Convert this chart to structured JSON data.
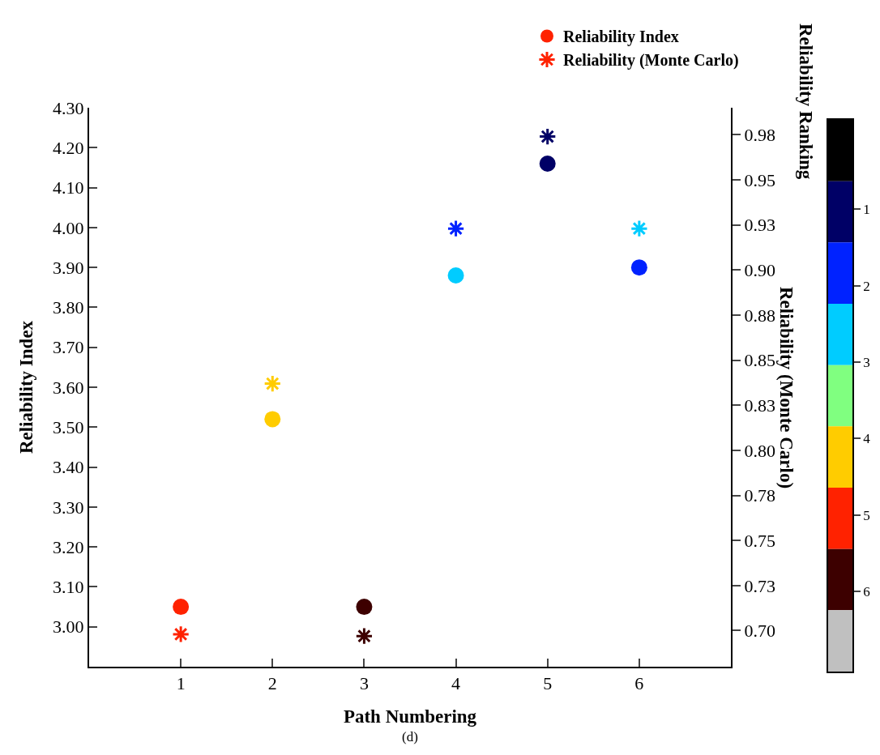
{
  "chart_data": {
    "type": "scatter",
    "xlabel": "Path Numbering",
    "ylabel": "Reliability Index",
    "y2label": "Reliability (Monte Carlo)",
    "clabel": "Reliability Ranking",
    "annotations": [
      "(d)"
    ],
    "x": [
      1,
      2,
      3,
      4,
      5,
      6
    ],
    "xlim": [
      0,
      7
    ],
    "xticks": [
      1,
      2,
      3,
      4,
      5,
      6
    ],
    "ylim": [
      2.9,
      4.3
    ],
    "yticks": [
      {
        "value": 3.0,
        "label": "3.00"
      },
      {
        "value": 3.1,
        "label": "3.10"
      },
      {
        "value": 3.2,
        "label": "3.20"
      },
      {
        "value": 3.3,
        "label": "3.30"
      },
      {
        "value": 3.4,
        "label": "3.40"
      },
      {
        "value": 3.5,
        "label": "3.50"
      },
      {
        "value": 3.6,
        "label": "3.60"
      },
      {
        "value": 3.7,
        "label": "3.70"
      },
      {
        "value": 3.8,
        "label": "3.80"
      },
      {
        "value": 3.9,
        "label": "3.90"
      },
      {
        "value": 4.0,
        "label": "4.00"
      },
      {
        "value": 4.1,
        "label": "4.10"
      },
      {
        "value": 4.2,
        "label": "4.20"
      },
      {
        "value": 4.3,
        "label": "4.30"
      }
    ],
    "y2lim": [
      0.68,
      0.99
    ],
    "y2ticks": [
      {
        "value": 0.7,
        "label": "0.70"
      },
      {
        "value": 0.725,
        "label": "0.73"
      },
      {
        "value": 0.75,
        "label": "0.75"
      },
      {
        "value": 0.775,
        "label": "0.78"
      },
      {
        "value": 0.8,
        "label": "0.80"
      },
      {
        "value": 0.825,
        "label": "0.83"
      },
      {
        "value": 0.85,
        "label": "0.85"
      },
      {
        "value": 0.875,
        "label": "0.88"
      },
      {
        "value": 0.9,
        "label": "0.90"
      },
      {
        "value": 0.925,
        "label": "0.93"
      },
      {
        "value": 0.95,
        "label": "0.95"
      },
      {
        "value": 0.975,
        "label": "0.98"
      }
    ],
    "clim": [
      7.05,
      -0.17
    ],
    "cticks": [
      1,
      2,
      3,
      4,
      5,
      6
    ],
    "colors": [
      "#000000",
      "#000066",
      "#0022ff",
      "#00ccff",
      "#80ff80",
      "#ffcc00",
      "#ff2200",
      "#3d0000",
      "#c0c0c0"
    ],
    "legend": "top right",
    "series": [
      {
        "name": "Reliability Index",
        "colors": [
          "#ff2200",
          "#ffcc00",
          "#3d0000",
          "#00ccff",
          "#000066",
          "#0022ff"
        ],
        "marker": "circle",
        "values": [
          3.05,
          3.52,
          3.05,
          3.88,
          4.16,
          3.9
        ]
      },
      {
        "name": "Reliability (Monte Carlo)",
        "colors": [
          "#ff2200",
          "#ffcc00",
          "#3d0000",
          "#0022ff",
          "#000066",
          "#00ccff"
        ],
        "marker": "cross",
        "axis": "y2",
        "values": [
          0.698,
          0.837,
          0.697,
          0.923,
          0.974,
          0.923
        ]
      }
    ]
  }
}
